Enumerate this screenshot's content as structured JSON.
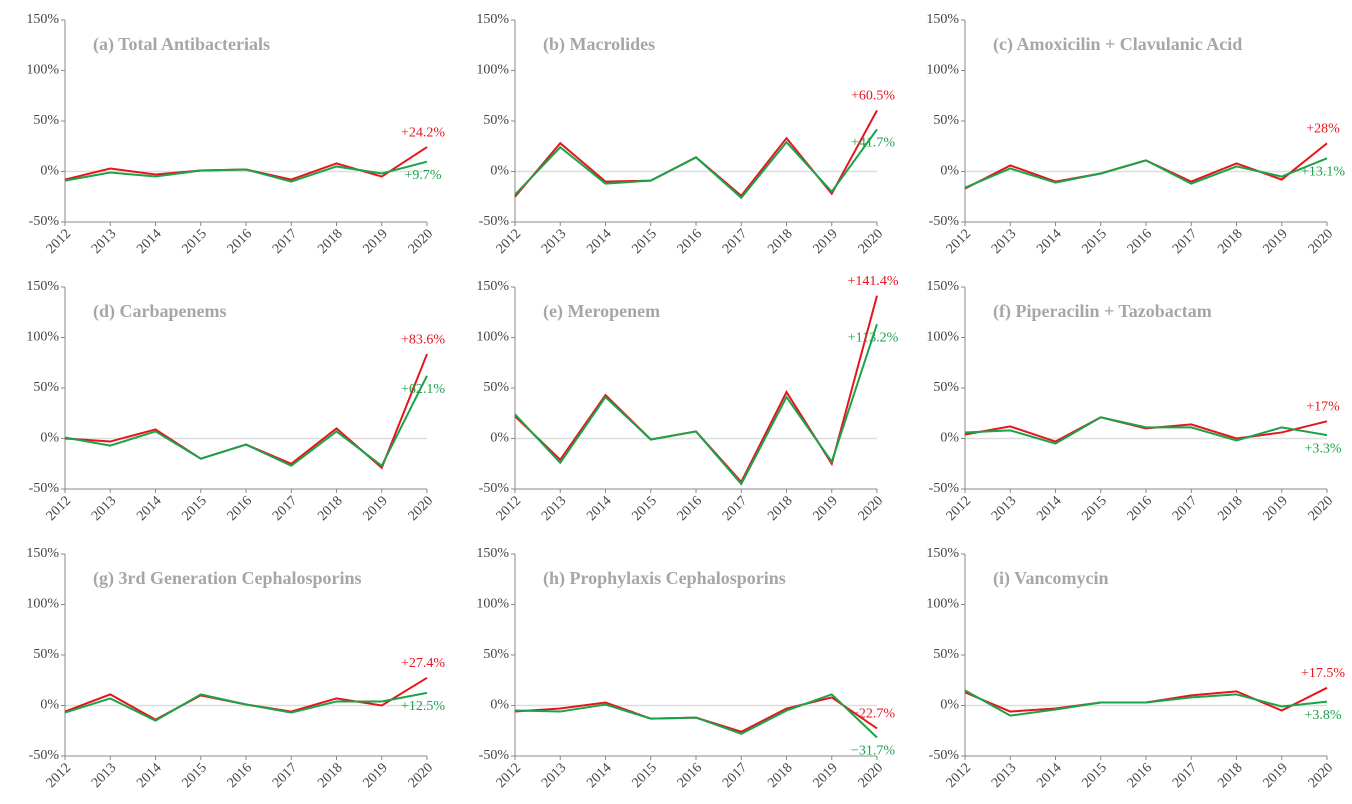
{
  "chart_data": [
    {
      "type": "line",
      "title": "(a) Total Antibacterials",
      "categories": [
        "2012",
        "2013",
        "2014",
        "2015",
        "2016",
        "2017",
        "2018",
        "2019",
        "2020"
      ],
      "series": [
        {
          "color": "#e8141c",
          "values": [
            -8,
            3,
            -3,
            1,
            2,
            -8,
            8,
            -5,
            24.2
          ],
          "value_labels": [
            null,
            null,
            null,
            null,
            null,
            null,
            null,
            null,
            "+24.2%"
          ]
        },
        {
          "color": "#1aa34a",
          "values": [
            -9,
            -1,
            -5,
            1,
            2,
            -10,
            5,
            -2,
            9.7
          ],
          "value_labels": [
            null,
            null,
            null,
            null,
            null,
            null,
            null,
            null,
            "+9.7%"
          ]
        }
      ],
      "ylim": [
        -50,
        150
      ],
      "yticks": [
        {
          "value": -50,
          "label": "-50%"
        },
        {
          "value": 0,
          "label": "0%"
        },
        {
          "value": 50,
          "label": "50%"
        },
        {
          "value": 100,
          "label": "100%"
        },
        {
          "value": 150,
          "label": "150%"
        }
      ]
    },
    {
      "type": "line",
      "title": "(b) Macrolides",
      "categories": [
        "2012",
        "2013",
        "2014",
        "2015",
        "2016",
        "2017",
        "2018",
        "2019",
        "2020"
      ],
      "series": [
        {
          "color": "#e8141c",
          "values": [
            -25,
            28,
            -10,
            -9,
            14,
            -24,
            33,
            -22,
            60.5
          ],
          "value_labels": [
            null,
            null,
            null,
            null,
            null,
            null,
            null,
            null,
            "+60.5%"
          ]
        },
        {
          "color": "#1aa34a",
          "values": [
            -23,
            24,
            -12,
            -9,
            14,
            -26,
            29,
            -20,
            41.7
          ],
          "value_labels": [
            null,
            null,
            null,
            null,
            null,
            null,
            null,
            null,
            "+41.7%"
          ]
        }
      ],
      "ylim": [
        -50,
        150
      ],
      "yticks": [
        {
          "value": -50,
          "label": "-50%"
        },
        {
          "value": 0,
          "label": "0%"
        },
        {
          "value": 50,
          "label": "50%"
        },
        {
          "value": 100,
          "label": "100%"
        },
        {
          "value": 150,
          "label": "150%"
        }
      ]
    },
    {
      "type": "line",
      "title": "(c) Amoxicilin + Clavulanic Acid",
      "categories": [
        "2012",
        "2013",
        "2014",
        "2015",
        "2016",
        "2017",
        "2018",
        "2019",
        "2020"
      ],
      "series": [
        {
          "color": "#e8141c",
          "values": [
            -17,
            6,
            -10,
            -2,
            11,
            -10,
            8,
            -8,
            28
          ],
          "value_labels": [
            null,
            null,
            null,
            null,
            null,
            null,
            null,
            null,
            "+28%"
          ]
        },
        {
          "color": "#1aa34a",
          "values": [
            -16,
            3,
            -11,
            -2,
            11,
            -12,
            5,
            -5,
            13.1
          ],
          "value_labels": [
            null,
            null,
            null,
            null,
            null,
            null,
            null,
            null,
            "+13.1%"
          ]
        }
      ],
      "ylim": [
        -50,
        150
      ],
      "yticks": [
        {
          "value": -50,
          "label": "-50%"
        },
        {
          "value": 0,
          "label": "0%"
        },
        {
          "value": 50,
          "label": "50%"
        },
        {
          "value": 100,
          "label": "100%"
        },
        {
          "value": 150,
          "label": "150%"
        }
      ]
    },
    {
      "type": "line",
      "title": "(d) Carbapenems",
      "categories": [
        "2012",
        "2013",
        "2014",
        "2015",
        "2016",
        "2017",
        "2018",
        "2019",
        "2020"
      ],
      "series": [
        {
          "color": "#e8141c",
          "values": [
            0,
            -3,
            9,
            -20,
            -6,
            -25,
            10,
            -29,
            83.6
          ],
          "value_labels": [
            null,
            null,
            null,
            null,
            null,
            null,
            null,
            null,
            "+83.6%"
          ]
        },
        {
          "color": "#1aa34a",
          "values": [
            1,
            -7,
            7,
            -20,
            -6,
            -27,
            7,
            -27,
            62.1
          ],
          "value_labels": [
            null,
            null,
            null,
            null,
            null,
            null,
            null,
            null,
            "+62.1%"
          ]
        }
      ],
      "ylim": [
        -50,
        150
      ],
      "yticks": [
        {
          "value": -50,
          "label": "-50%"
        },
        {
          "value": 0,
          "label": "0%"
        },
        {
          "value": 50,
          "label": "50%"
        },
        {
          "value": 100,
          "label": "100%"
        },
        {
          "value": 150,
          "label": "150%"
        }
      ]
    },
    {
      "type": "line",
      "title": "(e) Meropenem",
      "categories": [
        "2012",
        "2013",
        "2014",
        "2015",
        "2016",
        "2017",
        "2018",
        "2019",
        "2020"
      ],
      "series": [
        {
          "color": "#e8141c",
          "values": [
            22,
            -21,
            43,
            -1,
            7,
            -43,
            46,
            -25,
            141.4
          ],
          "value_labels": [
            null,
            null,
            null,
            null,
            null,
            null,
            null,
            null,
            "+141.4%"
          ]
        },
        {
          "color": "#1aa34a",
          "values": [
            24,
            -24,
            41,
            -1,
            7,
            -45,
            41,
            -23,
            113.2
          ],
          "value_labels": [
            null,
            null,
            null,
            null,
            null,
            null,
            null,
            null,
            "+113.2%"
          ]
        }
      ],
      "ylim": [
        -50,
        150
      ],
      "yticks": [
        {
          "value": -50,
          "label": "-50%"
        },
        {
          "value": 0,
          "label": "0%"
        },
        {
          "value": 50,
          "label": "50%"
        },
        {
          "value": 100,
          "label": "100%"
        },
        {
          "value": 150,
          "label": "150%"
        }
      ]
    },
    {
      "type": "line",
      "title": "(f) Piperacilin + Tazobactam",
      "categories": [
        "2012",
        "2013",
        "2014",
        "2015",
        "2016",
        "2017",
        "2018",
        "2019",
        "2020"
      ],
      "series": [
        {
          "color": "#e8141c",
          "values": [
            4,
            12,
            -3,
            21,
            10,
            14,
            0,
            6,
            17
          ],
          "value_labels": [
            null,
            null,
            null,
            null,
            null,
            null,
            null,
            null,
            "+17%"
          ]
        },
        {
          "color": "#1aa34a",
          "values": [
            6,
            8,
            -5,
            21,
            11,
            11,
            -2,
            11,
            3.3
          ],
          "value_labels": [
            null,
            null,
            null,
            null,
            null,
            null,
            null,
            null,
            "+3.3%"
          ]
        }
      ],
      "ylim": [
        -50,
        150
      ],
      "yticks": [
        {
          "value": -50,
          "label": "-50%"
        },
        {
          "value": 0,
          "label": "0%"
        },
        {
          "value": 50,
          "label": "50%"
        },
        {
          "value": 100,
          "label": "100%"
        },
        {
          "value": 150,
          "label": "150%"
        }
      ]
    },
    {
      "type": "line",
      "title": "(g) 3rd Generation Cephalosporins",
      "categories": [
        "2012",
        "2013",
        "2014",
        "2015",
        "2016",
        "2017",
        "2018",
        "2019",
        "2020"
      ],
      "series": [
        {
          "color": "#e8141c",
          "values": [
            -6,
            11,
            -14,
            10,
            1,
            -6,
            7,
            0,
            27.4
          ],
          "value_labels": [
            null,
            null,
            null,
            null,
            null,
            null,
            null,
            null,
            "+27.4%"
          ]
        },
        {
          "color": "#1aa34a",
          "values": [
            -7,
            7,
            -15,
            11,
            1,
            -7,
            4,
            4,
            12.5
          ],
          "value_labels": [
            null,
            null,
            null,
            null,
            null,
            null,
            null,
            null,
            "+12.5%"
          ]
        }
      ],
      "ylim": [
        -50,
        150
      ],
      "yticks": [
        {
          "value": -50,
          "label": "-50%"
        },
        {
          "value": 0,
          "label": "0%"
        },
        {
          "value": 50,
          "label": "50%"
        },
        {
          "value": 100,
          "label": "100%"
        },
        {
          "value": 150,
          "label": "150%"
        }
      ]
    },
    {
      "type": "line",
      "title": "(h) Prophylaxis Cephalosporins",
      "categories": [
        "2012",
        "2013",
        "2014",
        "2015",
        "2016",
        "2017",
        "2018",
        "2019",
        "2020"
      ],
      "series": [
        {
          "color": "#e8141c",
          "values": [
            -6,
            -3,
            3,
            -13,
            -12,
            -26,
            -3,
            8,
            -22.7
          ],
          "value_labels": [
            null,
            null,
            null,
            null,
            null,
            null,
            null,
            null,
            "−22.7%"
          ]
        },
        {
          "color": "#1aa34a",
          "values": [
            -5,
            -6,
            1,
            -13,
            -12,
            -28,
            -5,
            11,
            -31.7
          ],
          "value_labels": [
            null,
            null,
            null,
            null,
            null,
            null,
            null,
            null,
            "−31.7%"
          ]
        }
      ],
      "ylim": [
        -50,
        150
      ],
      "yticks": [
        {
          "value": -50,
          "label": "-50%"
        },
        {
          "value": 0,
          "label": "0%"
        },
        {
          "value": 50,
          "label": "50%"
        },
        {
          "value": 100,
          "label": "100%"
        },
        {
          "value": 150,
          "label": "150%"
        }
      ]
    },
    {
      "type": "line",
      "title": "(i) Vancomycin",
      "categories": [
        "2012",
        "2013",
        "2014",
        "2015",
        "2016",
        "2017",
        "2018",
        "2019",
        "2020"
      ],
      "series": [
        {
          "color": "#e8141c",
          "values": [
            13,
            -6,
            -3,
            3,
            3,
            10,
            14,
            -5,
            17.5
          ],
          "value_labels": [
            null,
            null,
            null,
            null,
            null,
            null,
            null,
            null,
            "+17.5%"
          ]
        },
        {
          "color": "#1aa34a",
          "values": [
            15,
            -10,
            -4,
            3,
            3,
            8,
            11,
            -1,
            3.8
          ],
          "value_labels": [
            null,
            null,
            null,
            null,
            null,
            null,
            null,
            null,
            "+3.8%"
          ]
        }
      ],
      "ylim": [
        -50,
        150
      ],
      "yticks": [
        {
          "value": -50,
          "label": "-50%"
        },
        {
          "value": 0,
          "label": "0%"
        },
        {
          "value": 50,
          "label": "50%"
        },
        {
          "value": 100,
          "label": "100%"
        },
        {
          "value": 150,
          "label": "150%"
        }
      ]
    }
  ]
}
